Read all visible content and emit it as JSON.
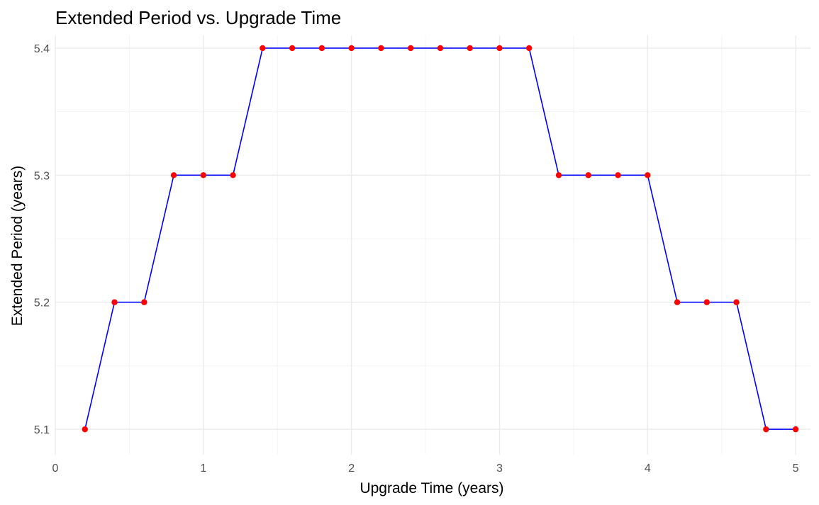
{
  "chart_data": {
    "type": "line",
    "title": "Extended Period vs. Upgrade Time",
    "xlabel": "Upgrade Time (years)",
    "ylabel": "Extended Period (years)",
    "xlim": [
      0,
      5.1
    ],
    "ylim": [
      5.08,
      5.41
    ],
    "xticks": [
      0,
      1,
      2,
      3,
      4,
      5
    ],
    "yticks": [
      5.1,
      5.2,
      5.3,
      5.4
    ],
    "grid": true,
    "line_color": "#0000ff",
    "point_color": "#ff0000",
    "series": [
      {
        "x": [
          0.2,
          0.4,
          0.6,
          0.8,
          1.0,
          1.2,
          1.4,
          1.6,
          1.8,
          2.0,
          2.2,
          2.4,
          2.6,
          2.8,
          3.0,
          3.2,
          3.4,
          3.6,
          3.8,
          4.0,
          4.2,
          4.4,
          4.6,
          4.8,
          5.0
        ],
        "values": [
          5.1,
          5.2,
          5.2,
          5.3,
          5.3,
          5.3,
          5.4,
          5.4,
          5.4,
          5.4,
          5.4,
          5.4,
          5.4,
          5.4,
          5.4,
          5.4,
          5.3,
          5.3,
          5.3,
          5.3,
          5.2,
          5.2,
          5.2,
          5.1,
          5.1
        ]
      }
    ]
  }
}
